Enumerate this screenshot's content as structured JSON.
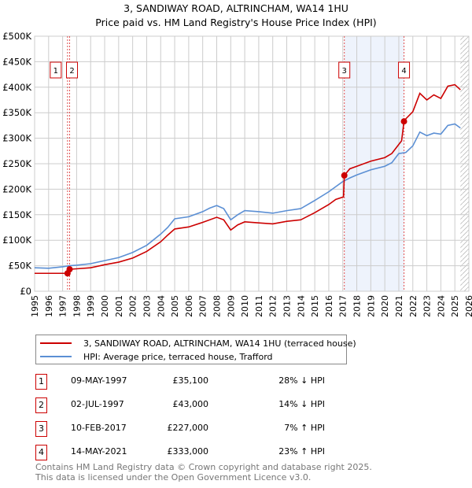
{
  "title": "3, SANDIWAY ROAD, ALTRINCHAM, WA14 1HU",
  "subtitle": "Price paid vs. HM Land Registry's House Price Index (HPI)",
  "chart_data": {
    "type": "line",
    "title": "3, SANDIWAY ROAD, ALTRINCHAM, WA14 1HU — Price paid vs. HM Land Registry's House Price Index (HPI)",
    "xlim": [
      1995,
      2026
    ],
    "ylim": [
      0,
      500000
    ],
    "x_ticks": [
      "1995",
      "1996",
      "1997",
      "1998",
      "1999",
      "2000",
      "2001",
      "2002",
      "2003",
      "2004",
      "2005",
      "2006",
      "2007",
      "2008",
      "2009",
      "2010",
      "2011",
      "2012",
      "2013",
      "2014",
      "2015",
      "2016",
      "2017",
      "2018",
      "2019",
      "2020",
      "2021",
      "2022",
      "2023",
      "2024",
      "2025",
      "2026"
    ],
    "y_ticks": [
      {
        "v": 0,
        "label": "£0"
      },
      {
        "v": 50000,
        "label": "£50K"
      },
      {
        "v": 100000,
        "label": "£100K"
      },
      {
        "v": 150000,
        "label": "£150K"
      },
      {
        "v": 200000,
        "label": "£200K"
      },
      {
        "v": 250000,
        "label": "£250K"
      },
      {
        "v": 300000,
        "label": "£300K"
      },
      {
        "v": 350000,
        "label": "£350K"
      },
      {
        "v": 400000,
        "label": "£400K"
      },
      {
        "v": 450000,
        "label": "£450K"
      },
      {
        "v": 500000,
        "label": "£500K"
      }
    ],
    "grid": true,
    "shaded_region": [
      2017.11,
      2021.37
    ],
    "forecast_hatch_from": 2025.4,
    "series": [
      {
        "name": "3, SANDIWAY ROAD, ALTRINCHAM, WA14 1HU (terraced house)",
        "color": "#cc0000",
        "x": [
          1995,
          1997.35,
          1997.5,
          1998,
          1999,
          2000,
          2001,
          2002,
          2003,
          2004,
          2004.5,
          2005,
          2006,
          2007,
          2008,
          2008.5,
          2009,
          2009.5,
          2010,
          2011,
          2012,
          2013,
          2014,
          2015,
          2016,
          2016.5,
          2017.05,
          2017.11,
          2017.5,
          2018,
          2019,
          2020,
          2020.5,
          2021.2,
          2021.37,
          2021.5,
          2022,
          2022.5,
          2023,
          2023.5,
          2024,
          2024.5,
          2025,
          2025.4
        ],
        "y": [
          35100,
          35100,
          43000,
          44000,
          46000,
          52000,
          57000,
          65000,
          78000,
          97000,
          110000,
          122000,
          126000,
          135000,
          145000,
          140000,
          120000,
          130000,
          136000,
          134000,
          132000,
          137000,
          140000,
          154000,
          170000,
          180000,
          185000,
          227000,
          240000,
          245000,
          255000,
          262000,
          270000,
          295000,
          333000,
          338000,
          352000,
          388000,
          375000,
          385000,
          378000,
          402000,
          405000,
          395000
        ]
      },
      {
        "name": "HPI: Average price, terraced house, Trafford",
        "color": "#5b8fd4",
        "x": [
          1995,
          1996,
          1997,
          1997.5,
          1998,
          1999,
          2000,
          2001,
          2002,
          2003,
          2004,
          2004.5,
          2005,
          2006,
          2007,
          2007.5,
          2008,
          2008.5,
          2009,
          2009.5,
          2010,
          2011,
          2012,
          2013,
          2014,
          2015,
          2016,
          2016.5,
          2017,
          2017.5,
          2018,
          2019,
          2020,
          2020.5,
          2021,
          2021.5,
          2022,
          2022.5,
          2023,
          2023.5,
          2024,
          2024.5,
          2025,
          2025.4
        ],
        "y": [
          46000,
          45000,
          48000,
          50000,
          51000,
          54000,
          60000,
          66000,
          76000,
          90000,
          112000,
          125000,
          142000,
          146000,
          156000,
          163000,
          168000,
          162000,
          140000,
          150000,
          158000,
          156000,
          153000,
          158000,
          162000,
          178000,
          195000,
          205000,
          215000,
          222000,
          228000,
          238000,
          245000,
          252000,
          270000,
          272000,
          285000,
          312000,
          305000,
          310000,
          308000,
          325000,
          328000,
          320000
        ]
      }
    ],
    "sales": [
      {
        "n": "1",
        "x": 1997.35,
        "y": 35100
      },
      {
        "n": "2",
        "x": 1997.5,
        "y": 43000
      },
      {
        "n": "3",
        "x": 2017.11,
        "y": 227000
      },
      {
        "n": "4",
        "x": 2021.37,
        "y": 333000
      }
    ]
  },
  "legend": {
    "property": "3, SANDIWAY ROAD, ALTRINCHAM, WA14 1HU (terraced house)",
    "hpi": "HPI: Average price, terraced house, Trafford"
  },
  "transactions": [
    {
      "n": "1",
      "date": "09-MAY-1997",
      "price": "£35,100",
      "hpi": "28% ↓ HPI"
    },
    {
      "n": "2",
      "date": "02-JUL-1997",
      "price": "£43,000",
      "hpi": "14% ↓ HPI"
    },
    {
      "n": "3",
      "date": "10-FEB-2017",
      "price": "£227,000",
      "hpi": "7% ↑ HPI"
    },
    {
      "n": "4",
      "date": "14-MAY-2021",
      "price": "£333,000",
      "hpi": "23% ↑ HPI"
    }
  ],
  "footer": {
    "line1": "Contains HM Land Registry data © Crown copyright and database right 2025.",
    "line2": "This data is licensed under the Open Government Licence v3.0."
  }
}
